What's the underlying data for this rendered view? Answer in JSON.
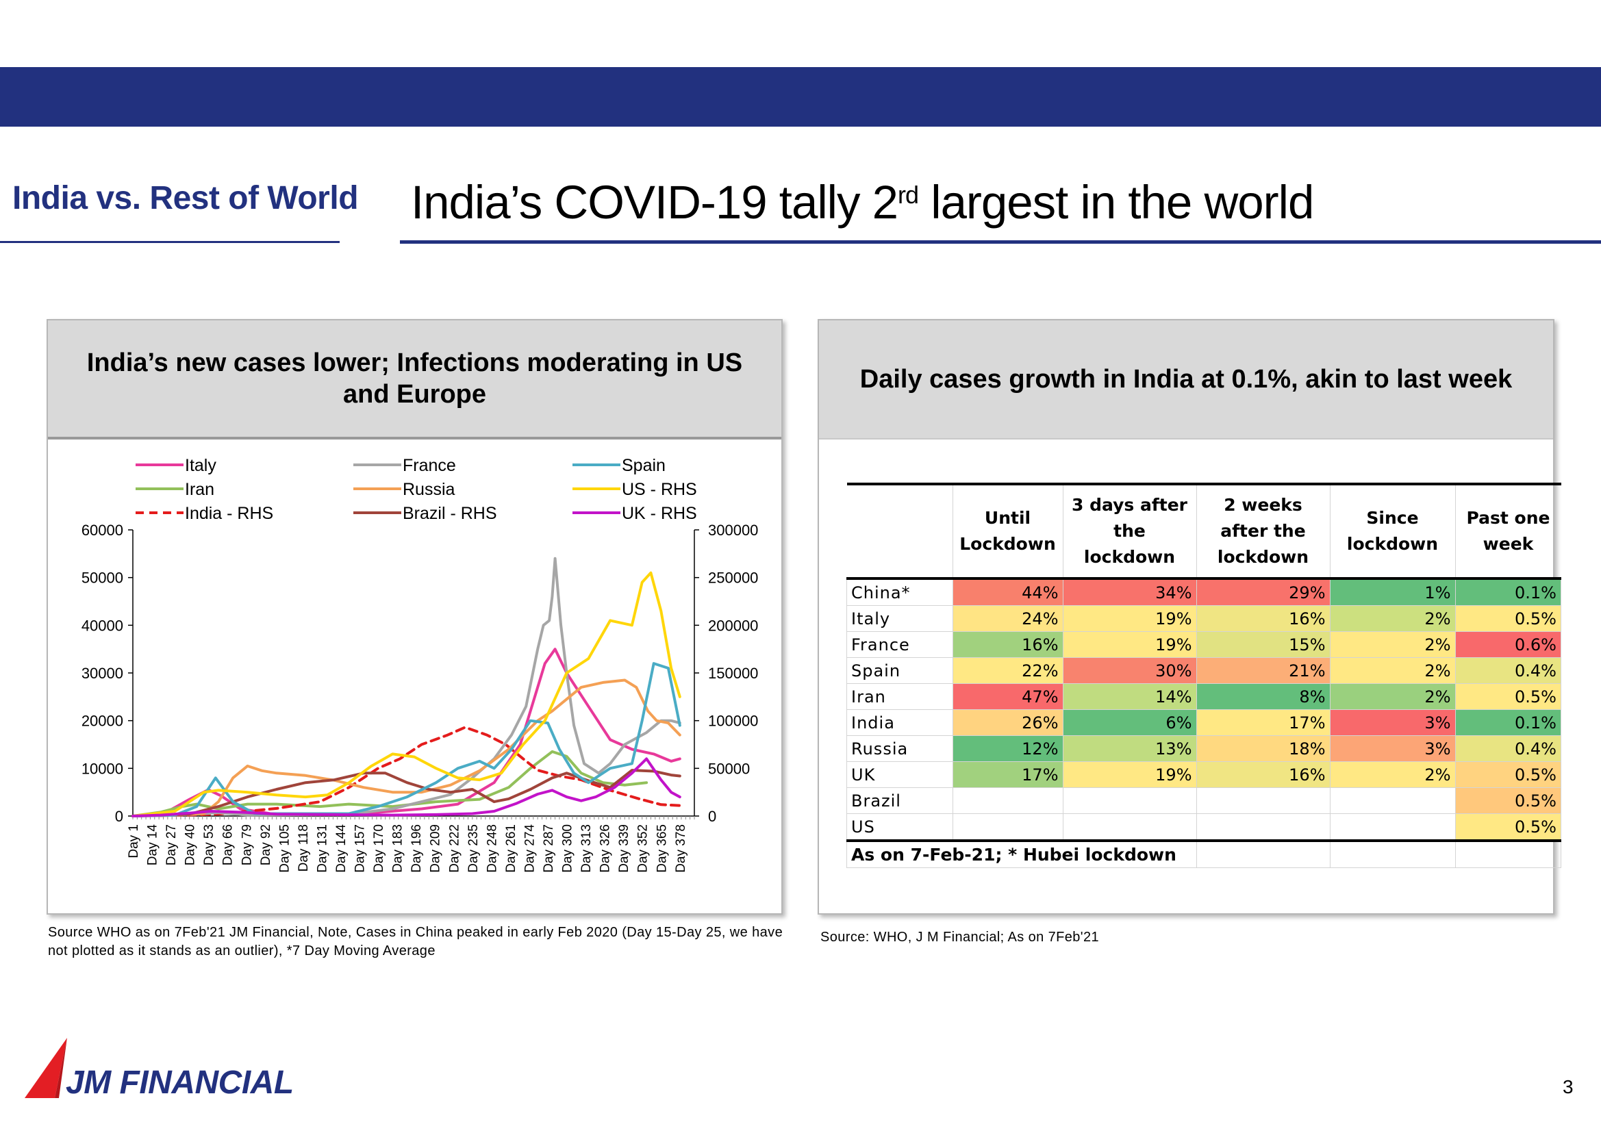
{
  "header": {
    "section_label": "India vs. Rest of World",
    "title_main": "India’s COVID-19 tally 2",
    "title_sup": "rd",
    "title_rest": " largest in the world"
  },
  "left_panel": {
    "title": "India’s new cases lower; Infections moderating in US and Europe",
    "source": "Source WHO as on 7Feb'21  JM Financial, Note, Cases in China peaked in early Feb 2020 (Day 15-Day 25, we have not plotted as it stands as an outlier), *7 Day Moving Average"
  },
  "chart_data": {
    "type": "line",
    "x_tick_labels": [
      "Day 1",
      "Day 14",
      "Day 27",
      "Day 40",
      "Day 53",
      "Day 66",
      "Day 79",
      "Day 92",
      "Day 105",
      "Day 118",
      "Day 131",
      "Day 144",
      "Day 157",
      "Day 170",
      "Day 183",
      "Day 196",
      "Day 209",
      "Day 222",
      "Day 235",
      "Day 248",
      "Day 261",
      "Day 274",
      "Day 287",
      "Day 300",
      "Day 313",
      "Day 326",
      "Day 339",
      "Day 352",
      "Day 365",
      "Day 378"
    ],
    "xlim": [
      1,
      388
    ],
    "left_axis": {
      "ylim": [
        0,
        60000
      ],
      "ticks": [
        "0",
        "10000",
        "20000",
        "30000",
        "40000",
        "50000",
        "60000"
      ]
    },
    "right_axis": {
      "ylim": [
        0,
        300000
      ],
      "ticks": [
        "0",
        "50000",
        "100000",
        "150000",
        "200000",
        "250000",
        "300000"
      ]
    },
    "legend_position": "top",
    "series": [
      {
        "name": "Italy",
        "axis": "left",
        "color": "#e8399a",
        "dash": false,
        "points": [
          [
            1,
            0
          ],
          [
            20,
            100
          ],
          [
            40,
            3500
          ],
          [
            53,
            5500
          ],
          [
            62,
            4200
          ],
          [
            75,
            1500
          ],
          [
            100,
            300
          ],
          [
            150,
            300
          ],
          [
            200,
            1500
          ],
          [
            225,
            2500
          ],
          [
            250,
            7000
          ],
          [
            268,
            15000
          ],
          [
            285,
            32000
          ],
          [
            292,
            35000
          ],
          [
            300,
            30000
          ],
          [
            315,
            23000
          ],
          [
            330,
            16000
          ],
          [
            345,
            14000
          ],
          [
            360,
            13000
          ],
          [
            372,
            11500
          ],
          [
            378,
            12000
          ]
        ]
      },
      {
        "name": "Iran",
        "axis": "left",
        "color": "#92c05a",
        "dash": false,
        "points": [
          [
            1,
            0
          ],
          [
            20,
            800
          ],
          [
            35,
            2000
          ],
          [
            45,
            2500
          ],
          [
            60,
            1500
          ],
          [
            80,
            2500
          ],
          [
            100,
            2500
          ],
          [
            130,
            2000
          ],
          [
            150,
            2500
          ],
          [
            180,
            2000
          ],
          [
            210,
            3000
          ],
          [
            240,
            3500
          ],
          [
            260,
            6000
          ],
          [
            275,
            10000
          ],
          [
            290,
            13500
          ],
          [
            300,
            12500
          ],
          [
            310,
            9000
          ],
          [
            325,
            7000
          ],
          [
            340,
            6500
          ],
          [
            355,
            7000
          ]
        ]
      },
      {
        "name": "India - RHS",
        "axis": "right",
        "color": "#e41c1c",
        "dash": true,
        "points": [
          [
            1,
            0
          ],
          [
            40,
            1000
          ],
          [
            60,
            2000
          ],
          [
            80,
            5000
          ],
          [
            100,
            8000
          ],
          [
            130,
            15000
          ],
          [
            150,
            30000
          ],
          [
            170,
            50000
          ],
          [
            185,
            60000
          ],
          [
            200,
            75000
          ],
          [
            218,
            85000
          ],
          [
            230,
            93000
          ],
          [
            245,
            85000
          ],
          [
            258,
            75000
          ],
          [
            270,
            60000
          ],
          [
            280,
            48000
          ],
          [
            295,
            42000
          ],
          [
            310,
            38000
          ],
          [
            330,
            27000
          ],
          [
            350,
            18000
          ],
          [
            365,
            12000
          ],
          [
            378,
            11000
          ]
        ]
      },
      {
        "name": "France",
        "axis": "left",
        "color": "#a6a6a6",
        "dash": false,
        "points": [
          [
            1,
            0
          ],
          [
            30,
            200
          ],
          [
            45,
            400
          ],
          [
            60,
            700
          ],
          [
            80,
            200
          ],
          [
            120,
            300
          ],
          [
            150,
            400
          ],
          [
            180,
            1500
          ],
          [
            200,
            3000
          ],
          [
            220,
            4500
          ],
          [
            235,
            8000
          ],
          [
            250,
            12000
          ],
          [
            262,
            17000
          ],
          [
            272,
            23000
          ],
          [
            280,
            35000
          ],
          [
            284,
            40000
          ],
          [
            288,
            41000
          ],
          [
            290,
            46000
          ],
          [
            292,
            54000
          ],
          [
            296,
            40000
          ],
          [
            300,
            30000
          ],
          [
            305,
            19000
          ],
          [
            312,
            11000
          ],
          [
            322,
            9000
          ],
          [
            330,
            11000
          ],
          [
            340,
            15000
          ],
          [
            355,
            17500
          ],
          [
            365,
            20000
          ],
          [
            372,
            20000
          ],
          [
            378,
            19500
          ]
        ]
      },
      {
        "name": "Russia",
        "axis": "left",
        "color": "#f4a054",
        "dash": false,
        "points": [
          [
            1,
            0
          ],
          [
            50,
            500
          ],
          [
            60,
            3000
          ],
          [
            70,
            8000
          ],
          [
            80,
            10500
          ],
          [
            90,
            9500
          ],
          [
            100,
            9000
          ],
          [
            120,
            8500
          ],
          [
            140,
            7500
          ],
          [
            160,
            6000
          ],
          [
            180,
            5000
          ],
          [
            200,
            5000
          ],
          [
            220,
            6500
          ],
          [
            240,
            9500
          ],
          [
            260,
            14000
          ],
          [
            280,
            20000
          ],
          [
            290,
            22000
          ],
          [
            300,
            24500
          ],
          [
            310,
            27000
          ],
          [
            325,
            28000
          ],
          [
            340,
            28500
          ],
          [
            348,
            27000
          ],
          [
            356,
            22000
          ],
          [
            362,
            20000
          ],
          [
            370,
            19500
          ],
          [
            378,
            17000
          ]
        ]
      },
      {
        "name": "Brazil - RHS",
        "axis": "right",
        "color": "#a0443a",
        "dash": false,
        "points": [
          [
            1,
            0
          ],
          [
            40,
            2000
          ],
          [
            60,
            10000
          ],
          [
            80,
            20000
          ],
          [
            100,
            28000
          ],
          [
            120,
            35000
          ],
          [
            140,
            38000
          ],
          [
            160,
            45000
          ],
          [
            175,
            45000
          ],
          [
            190,
            35000
          ],
          [
            205,
            28000
          ],
          [
            220,
            25000
          ],
          [
            235,
            28000
          ],
          [
            250,
            15000
          ],
          [
            260,
            18000
          ],
          [
            275,
            28000
          ],
          [
            290,
            40000
          ],
          [
            300,
            45000
          ],
          [
            315,
            37000
          ],
          [
            330,
            30000
          ],
          [
            345,
            48000
          ],
          [
            360,
            47000
          ],
          [
            372,
            43000
          ],
          [
            378,
            42000
          ]
        ]
      },
      {
        "name": "Spain",
        "axis": "left",
        "color": "#4aacc5",
        "dash": false,
        "points": [
          [
            1,
            0
          ],
          [
            30,
            200
          ],
          [
            45,
            2000
          ],
          [
            58,
            8000
          ],
          [
            70,
            3000
          ],
          [
            85,
            500
          ],
          [
            120,
            500
          ],
          [
            150,
            500
          ],
          [
            170,
            2000
          ],
          [
            190,
            4000
          ],
          [
            210,
            7000
          ],
          [
            225,
            10000
          ],
          [
            240,
            11500
          ],
          [
            250,
            10000
          ],
          [
            262,
            14000
          ],
          [
            275,
            20000
          ],
          [
            287,
            19500
          ],
          [
            295,
            14000
          ],
          [
            305,
            9000
          ],
          [
            315,
            7000
          ],
          [
            330,
            10000
          ],
          [
            345,
            11000
          ],
          [
            352,
            20000
          ],
          [
            360,
            32000
          ],
          [
            370,
            31000
          ],
          [
            376,
            22000
          ],
          [
            378,
            19000
          ]
        ]
      },
      {
        "name": "US - RHS",
        "axis": "right",
        "color": "#ffd60a",
        "dash": false,
        "points": [
          [
            1,
            0
          ],
          [
            30,
            5000
          ],
          [
            40,
            15000
          ],
          [
            50,
            25000
          ],
          [
            60,
            27000
          ],
          [
            80,
            25000
          ],
          [
            100,
            22000
          ],
          [
            120,
            20000
          ],
          [
            135,
            22000
          ],
          [
            150,
            35000
          ],
          [
            165,
            52000
          ],
          [
            180,
            65000
          ],
          [
            195,
            62000
          ],
          [
            210,
            50000
          ],
          [
            225,
            40000
          ],
          [
            240,
            38000
          ],
          [
            255,
            45000
          ],
          [
            270,
            75000
          ],
          [
            285,
            100000
          ],
          [
            300,
            150000
          ],
          [
            315,
            165000
          ],
          [
            330,
            205000
          ],
          [
            345,
            200000
          ],
          [
            352,
            245000
          ],
          [
            358,
            255000
          ],
          [
            365,
            215000
          ],
          [
            372,
            155000
          ],
          [
            378,
            125000
          ]
        ]
      },
      {
        "name": "UK - RHS",
        "axis": "right",
        "color": "#c213c9",
        "dash": false,
        "points": [
          [
            1,
            0
          ],
          [
            20,
            1000
          ],
          [
            40,
            3000
          ],
          [
            55,
            5000
          ],
          [
            75,
            4000
          ],
          [
            100,
            2000
          ],
          [
            140,
            1500
          ],
          [
            180,
            1000
          ],
          [
            210,
            1500
          ],
          [
            235,
            2500
          ],
          [
            250,
            5000
          ],
          [
            265,
            13000
          ],
          [
            280,
            23000
          ],
          [
            290,
            27000
          ],
          [
            300,
            20000
          ],
          [
            310,
            16000
          ],
          [
            320,
            20000
          ],
          [
            333,
            30000
          ],
          [
            345,
            45000
          ],
          [
            355,
            60000
          ],
          [
            365,
            38000
          ],
          [
            372,
            25000
          ],
          [
            378,
            20000
          ]
        ]
      }
    ]
  },
  "right_panel": {
    "title": "Daily cases growth in India at 0.1%, akin to last week",
    "source": "Source:  WHO, J M Financial; As on 7Feb'21",
    "table": {
      "headers": [
        "",
        "Until Lockdown",
        "3 days after the lockdown",
        "2 weeks after the lockdown",
        "Since lockdown",
        "Past one week"
      ],
      "rows": [
        {
          "country": "China*",
          "values": [
            "44%",
            "34%",
            "29%",
            "1%",
            "0.1%"
          ],
          "colors": [
            "#f8806c",
            "#f8726b",
            "#f8726b",
            "#63be7b",
            "#63be7b"
          ]
        },
        {
          "country": "Italy",
          "values": [
            "24%",
            "19%",
            "16%",
            "2%",
            "0.5%"
          ],
          "colors": [
            "#ffe484",
            "#ffe884",
            "#f0e583",
            "#cce07f",
            "#ffe884"
          ]
        },
        {
          "country": "France",
          "values": [
            "16%",
            "19%",
            "15%",
            "2%",
            "0.6%"
          ],
          "colors": [
            "#a1d17e",
            "#ffe884",
            "#e1e282",
            "#ffe884",
            "#f8696b"
          ]
        },
        {
          "country": "Spain",
          "values": [
            "22%",
            "30%",
            "21%",
            "2%",
            "0.4%"
          ],
          "colors": [
            "#ffe884",
            "#f8836e",
            "#fcae77",
            "#ffe884",
            "#e8e482"
          ]
        },
        {
          "country": "Iran",
          "values": [
            "47%",
            "14%",
            "8%",
            "2%",
            "0.5%"
          ],
          "colors": [
            "#f8696b",
            "#c0dc80",
            "#63be7b",
            "#9ad07e",
            "#ffe884"
          ]
        },
        {
          "country": "India",
          "values": [
            "26%",
            "6%",
            "17%",
            "3%",
            "0.1%"
          ],
          "colors": [
            "#ffd380",
            "#63be7b",
            "#ffe884",
            "#f8696b",
            "#63be7b"
          ]
        },
        {
          "country": "Russia",
          "values": [
            "12%",
            "13%",
            "18%",
            "3%",
            "0.4%"
          ],
          "colors": [
            "#63be7b",
            "#c0dc80",
            "#ffd980",
            "#fca576",
            "#e8e482"
          ]
        },
        {
          "country": "UK",
          "values": [
            "17%",
            "19%",
            "16%",
            "2%",
            "0.5%"
          ],
          "colors": [
            "#a1d17e",
            "#ffe884",
            "#f0e583",
            "#ffe884",
            "#ffd380"
          ]
        },
        {
          "country": "Brazil",
          "values": [
            "",
            "",
            "",
            "",
            "0.5%"
          ],
          "colors": [
            "#ffffff",
            "#ffffff",
            "#ffffff",
            "#ffffff",
            "#ffc87c"
          ]
        },
        {
          "country": "US",
          "values": [
            "",
            "",
            "",
            "",
            "0.5%"
          ],
          "colors": [
            "#ffffff",
            "#ffffff",
            "#ffffff",
            "#ffffff",
            "#ffe884"
          ]
        }
      ],
      "note": "As on 7-Feb-21; * Hubei lockdown"
    }
  },
  "footer": {
    "logo_text": "JM FINANCIAL",
    "page_number": "3"
  },
  "colors": {
    "brand_navy": "#22317f",
    "logo_red": "#e31e24",
    "panel_header_gray": "#d9d9d9"
  }
}
